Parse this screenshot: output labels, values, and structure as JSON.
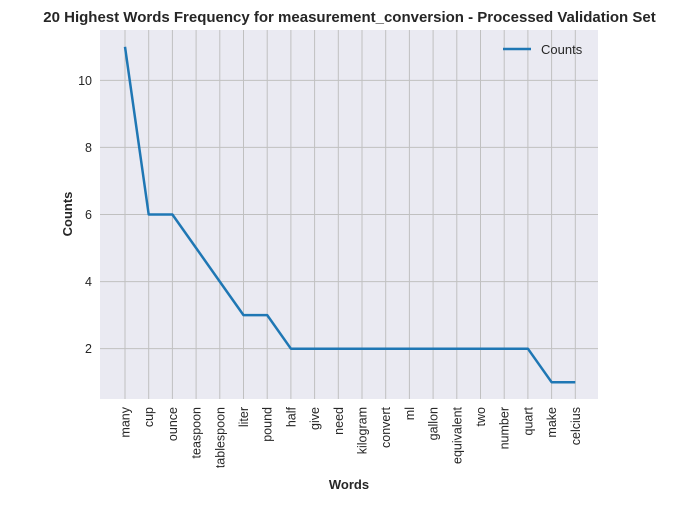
{
  "chart_data": {
    "type": "line",
    "title": "20 Highest Words Frequency for measurement_conversion - Processed Validation Set",
    "xlabel": "Words",
    "ylabel": "Counts",
    "categories": [
      "many",
      "cup",
      "ounce",
      "teaspoon",
      "tablespoon",
      "liter",
      "pound",
      "half",
      "give",
      "need",
      "kilogram",
      "convert",
      "ml",
      "gallon",
      "equivalent",
      "two",
      "number",
      "quart",
      "make",
      "celcius"
    ],
    "series": [
      {
        "name": "Counts",
        "values": [
          11,
          6,
          6,
          5,
          4,
          3,
          3,
          2,
          2,
          2,
          2,
          2,
          2,
          2,
          2,
          2,
          2,
          2,
          1,
          1
        ],
        "color": "#1f77b4"
      }
    ],
    "ylim": [
      0.5,
      11.5
    ],
    "yticks": [
      2,
      4,
      6,
      8,
      10
    ],
    "grid": true,
    "legend_position": "top-right",
    "colors": {
      "plot_background": "#eaeaf2",
      "grid": "#c0c0c0",
      "text": "#262626"
    }
  }
}
